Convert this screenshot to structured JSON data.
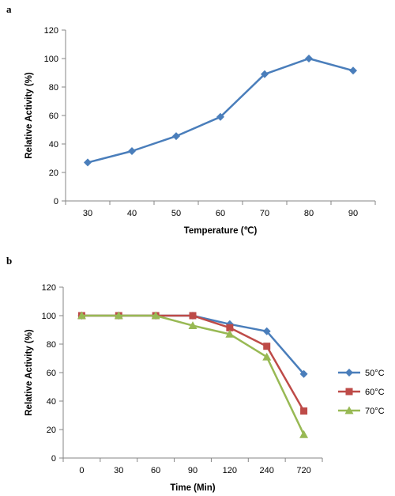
{
  "figures": {
    "a_label": "a",
    "b_label": "b"
  },
  "chart_data": [
    {
      "type": "line",
      "panel": "a",
      "title": "",
      "xlabel": "Temperature (℃)",
      "ylabel": "Relative Activity (%)",
      "ylim": [
        0,
        120
      ],
      "y_ticks": [
        0,
        20,
        40,
        60,
        80,
        100,
        120
      ],
      "categories": [
        "30",
        "40",
        "50",
        "60",
        "70",
        "80",
        "90"
      ],
      "grid": false,
      "legend": "none",
      "series": [
        {
          "values": [
            27,
            35,
            45.5,
            59,
            89,
            100,
            91.5
          ],
          "color": "#4a7ebb",
          "marker": "diamond"
        }
      ]
    },
    {
      "type": "line",
      "panel": "b",
      "title": "",
      "xlabel": "Time (Min)",
      "ylabel": "Relative Activity (%)",
      "ylim": [
        0,
        120
      ],
      "y_ticks": [
        0,
        20,
        40,
        60,
        80,
        100,
        120
      ],
      "categories": [
        "0",
        "30",
        "60",
        "90",
        "120",
        "240",
        "720"
      ],
      "grid": false,
      "legend": "right",
      "series": [
        {
          "name": "50°C",
          "values": [
            100,
            100,
            100,
            100,
            94,
            89,
            59
          ],
          "color": "#4a7ebb",
          "marker": "diamond"
        },
        {
          "name": "60°C",
          "values": [
            100,
            100,
            100,
            100,
            91.5,
            78.5,
            33
          ],
          "color": "#be4b48",
          "marker": "square"
        },
        {
          "name": "70°C",
          "values": [
            100,
            100,
            100,
            93,
            87,
            71,
            16.5
          ],
          "color": "#98b954",
          "marker": "triangle"
        }
      ]
    }
  ]
}
